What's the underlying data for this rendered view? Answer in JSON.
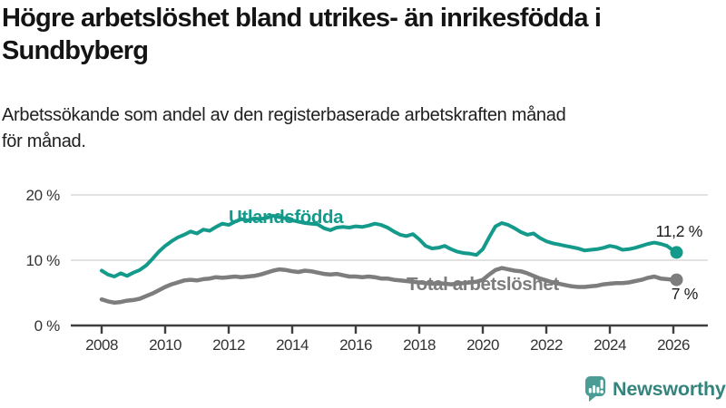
{
  "header": {
    "title_lines": [
      "Högre arbetslöshet bland utrikes- än inrikesfödda i",
      "Sundbyberg"
    ],
    "subtitle_lines": [
      "Arbetssökande som andel av den registerbaserade arbetskraften månad",
      "för månad."
    ]
  },
  "chart_data": {
    "type": "line",
    "title": "Högre arbetslöshet bland utrikes- än inrikesfödda i Sundbyberg",
    "subtitle": "Arbetssökande som andel av den registerbaserade arbetskraften månad för månad.",
    "grid": true,
    "legend_position": "inline-labels",
    "ylim": [
      0,
      20
    ],
    "xlim": [
      2007,
      2027.2
    ],
    "y_ticks": [
      {
        "value": 0,
        "label": "0 %"
      },
      {
        "value": 10,
        "label": "10 %"
      },
      {
        "value": 20,
        "label": "20 %"
      }
    ],
    "x_ticks": [
      2008,
      2010,
      2012,
      2014,
      2016,
      2018,
      2020,
      2022,
      2024,
      2026
    ],
    "x": [
      2008,
      2008.2,
      2008.4,
      2008.6,
      2008.8,
      2009,
      2009.2,
      2009.4,
      2009.6,
      2009.8,
      2010,
      2010.2,
      2010.4,
      2010.6,
      2010.8,
      2011,
      2011.2,
      2011.4,
      2011.6,
      2011.8,
      2012,
      2012.2,
      2012.4,
      2012.6,
      2012.8,
      2013,
      2013.2,
      2013.4,
      2013.6,
      2013.8,
      2014,
      2014.2,
      2014.4,
      2014.6,
      2014.8,
      2015,
      2015.2,
      2015.4,
      2015.6,
      2015.8,
      2016,
      2016.2,
      2016.4,
      2016.6,
      2016.8,
      2017,
      2017.2,
      2017.4,
      2017.6,
      2017.8,
      2018,
      2018.2,
      2018.4,
      2018.6,
      2018.8,
      2019,
      2019.2,
      2019.4,
      2019.6,
      2019.8,
      2020,
      2020.2,
      2020.4,
      2020.6,
      2020.8,
      2021,
      2021.2,
      2021.4,
      2021.6,
      2021.8,
      2022,
      2022.2,
      2022.4,
      2022.6,
      2022.8,
      2023,
      2023.2,
      2023.4,
      2023.6,
      2023.8,
      2024,
      2024.2,
      2024.4,
      2024.6,
      2024.8,
      2025,
      2025.2,
      2025.4,
      2025.6,
      2025.8,
      2026,
      2026.1
    ],
    "series": [
      {
        "id": "utlandsfodda",
        "name": "Utlandsfödda",
        "color": "#149a8b",
        "end_label": "11,2 %",
        "end_value": 11.2,
        "values": [
          8.4,
          7.8,
          7.5,
          8.0,
          7.6,
          8.1,
          8.5,
          9.2,
          10.2,
          11.3,
          12.2,
          12.9,
          13.5,
          13.9,
          14.4,
          14.1,
          14.7,
          14.5,
          15.1,
          15.6,
          15.4,
          15.9,
          16.3,
          16.1,
          16.4,
          16.3,
          16.5,
          16.8,
          16.6,
          16.4,
          16.1,
          15.9,
          15.7,
          15.6,
          15.5,
          14.9,
          14.6,
          15.0,
          15.1,
          15.0,
          15.2,
          15.1,
          15.3,
          15.6,
          15.4,
          15.0,
          14.4,
          13.9,
          13.7,
          14.0,
          13.2,
          12.2,
          11.8,
          11.9,
          12.2,
          11.7,
          11.3,
          11.1,
          11.0,
          10.8,
          11.7,
          13.5,
          15.2,
          15.7,
          15.4,
          14.9,
          14.3,
          13.9,
          14.1,
          13.4,
          12.9,
          12.6,
          12.4,
          12.2,
          12.0,
          11.8,
          11.5,
          11.6,
          11.7,
          11.9,
          12.2,
          12.0,
          11.6,
          11.7,
          11.9,
          12.2,
          12.5,
          12.7,
          12.5,
          12.2,
          11.5,
          11.2
        ]
      },
      {
        "id": "total-arbetsloshet",
        "name": "Total arbetslöshet",
        "color": "#7d7d7d",
        "end_label": "7 %",
        "end_value": 7,
        "values": [
          4.0,
          3.7,
          3.5,
          3.6,
          3.8,
          3.9,
          4.1,
          4.5,
          4.9,
          5.4,
          5.9,
          6.3,
          6.6,
          6.9,
          7.0,
          6.9,
          7.1,
          7.2,
          7.4,
          7.3,
          7.4,
          7.5,
          7.4,
          7.5,
          7.6,
          7.8,
          8.1,
          8.4,
          8.6,
          8.5,
          8.3,
          8.2,
          8.4,
          8.3,
          8.1,
          7.9,
          7.8,
          7.9,
          7.7,
          7.5,
          7.5,
          7.4,
          7.5,
          7.4,
          7.2,
          7.2,
          7.0,
          6.9,
          6.8,
          6.7,
          6.6,
          6.5,
          6.4,
          6.5,
          6.4,
          6.3,
          6.4,
          6.5,
          6.6,
          6.7,
          7.0,
          7.8,
          8.5,
          8.8,
          8.6,
          8.4,
          8.3,
          8.0,
          7.6,
          7.2,
          6.9,
          6.6,
          6.4,
          6.2,
          6.0,
          5.9,
          5.9,
          6.0,
          6.1,
          6.3,
          6.4,
          6.5,
          6.5,
          6.6,
          6.8,
          7.0,
          7.3,
          7.5,
          7.2,
          7.1,
          7.0,
          7.0
        ]
      }
    ],
    "colors": {
      "grid": "#d8d8d8",
      "axis": "#3e3e3e",
      "tick_text": "#333333",
      "end_label_text": "#1a1a1a"
    }
  },
  "footer": {
    "brand": "Newsworthy",
    "logo_color": "#4a9c94",
    "text_color": "#35837d"
  }
}
